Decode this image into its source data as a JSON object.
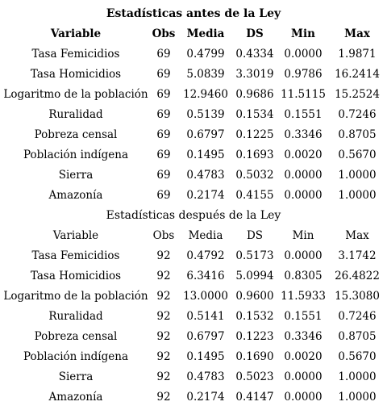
{
  "tables": [
    {
      "title": "Estadísticas antes de la Ley",
      "headers": [
        "Variable",
        "Obs",
        "Media",
        "DS",
        "Min",
        "Max"
      ],
      "rows": [
        [
          "Tasa Femicidios",
          "69",
          "0.4799",
          "0.4334",
          "0.0000",
          "1.9871"
        ],
        [
          "Tasa Homicidios",
          "69",
          "5.0839",
          "3.3019",
          "0.9786",
          "16.2414"
        ],
        [
          "Logaritmo de la población",
          "69",
          "12.9460",
          "0.9686",
          "11.5115",
          "15.2524"
        ],
        [
          "Ruralidad",
          "69",
          "0.5139",
          "0.1534",
          "0.1551",
          "0.7246"
        ],
        [
          "Pobreza censal",
          "69",
          "0.6797",
          "0.1225",
          "0.3346",
          "0.8705"
        ],
        [
          "Población indígena",
          "69",
          "0.1495",
          "0.1693",
          "0.0020",
          "0.5670"
        ],
        [
          "Sierra",
          "69",
          "0.4783",
          "0.5032",
          "0.0000",
          "1.0000"
        ],
        [
          "Amazonía",
          "69",
          "0.2174",
          "0.4155",
          "0.0000",
          "1.0000"
        ]
      ]
    },
    {
      "title": "Estadísticas después de la Ley",
      "headers": [
        "Variable",
        "Obs",
        "Media",
        "DS",
        "Min",
        "Max"
      ],
      "rows": [
        [
          "Tasa Femicidios",
          "92",
          "0.4792",
          "0.5173",
          "0.0000",
          "3.1742"
        ],
        [
          "Tasa Homicidios",
          "92",
          "6.3416",
          "5.0994",
          "0.8305",
          "26.4822"
        ],
        [
          "Logaritmo de la población",
          "92",
          "13.0000",
          "0.9600",
          "11.5933",
          "15.3080"
        ],
        [
          "Ruralidad",
          "92",
          "0.5141",
          "0.1532",
          "0.1551",
          "0.7246"
        ],
        [
          "Pobreza censal",
          "92",
          "0.6797",
          "0.1223",
          "0.3346",
          "0.8705"
        ],
        [
          "Población indígena",
          "92",
          "0.1495",
          "0.1690",
          "0.0020",
          "0.5670"
        ],
        [
          "Sierra",
          "92",
          "0.4783",
          "0.5023",
          "0.0000",
          "1.0000"
        ],
        [
          "Amazonía",
          "92",
          "0.2174",
          "0.4147",
          "0.0000",
          "1.0000"
        ]
      ]
    }
  ]
}
